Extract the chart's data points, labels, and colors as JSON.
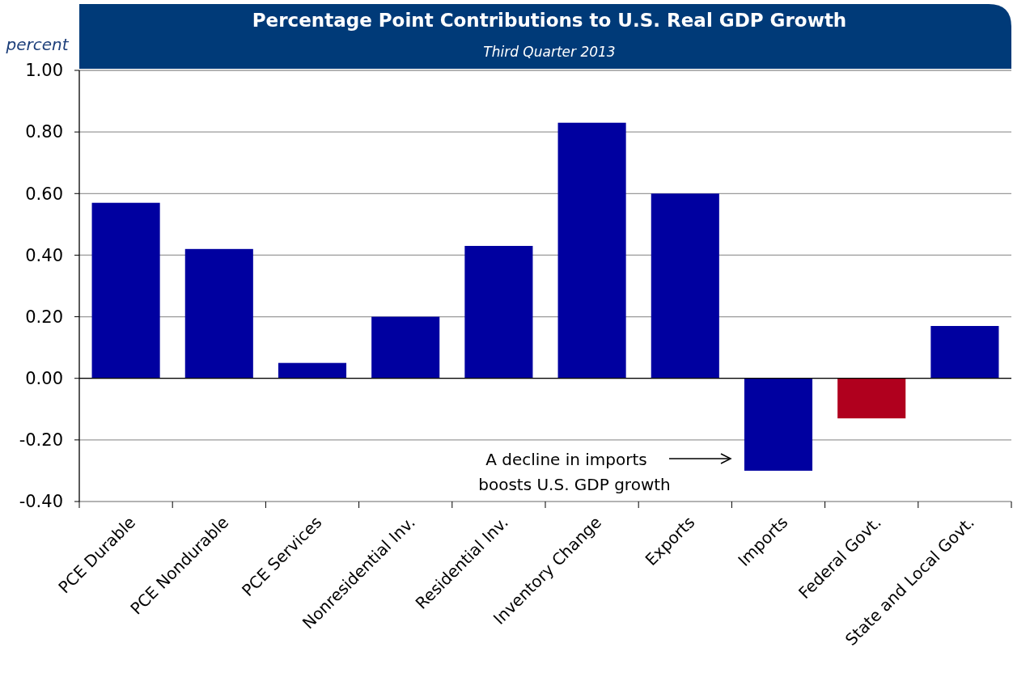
{
  "chart_data": {
    "type": "bar",
    "title": "Percentage Point Contributions to U.S. Real GDP Growth",
    "subtitle": "Third Quarter 2013",
    "ylabel": "percent",
    "categories": [
      "PCE Durable",
      "PCE Nondurable",
      "PCE Services",
      "Nonresidential Inv.",
      "Residential Inv.",
      "Inventory Change",
      "Exports",
      "Imports",
      "Federal Govt.",
      "State and Local Govt."
    ],
    "values": [
      0.57,
      0.42,
      0.05,
      0.2,
      0.43,
      0.83,
      0.6,
      -0.3,
      -0.13,
      0.17
    ],
    "colors": [
      "#0000a0",
      "#0000a0",
      "#0000a0",
      "#0000a0",
      "#0000a0",
      "#0000a0",
      "#0000a0",
      "#0000a0",
      "#b0001e",
      "#0000a0"
    ],
    "ylim": [
      -0.4,
      1.0
    ],
    "yticks": [
      {
        "value": -0.4,
        "label": "-0.40"
      },
      {
        "value": -0.2,
        "label": "-0.20"
      },
      {
        "value": 0,
        "label": "0.00"
      },
      {
        "value": 0.2,
        "label": "0.20"
      },
      {
        "value": 0.4,
        "label": "0.40"
      },
      {
        "value": 0.6,
        "label": "0.60"
      },
      {
        "value": 0.8,
        "label": "0.80"
      },
      {
        "value": 1.0,
        "label": "1.00"
      }
    ],
    "grid": "y",
    "annotations": [
      "A decline in imports\nboosts U.S. GDP growth"
    ]
  }
}
